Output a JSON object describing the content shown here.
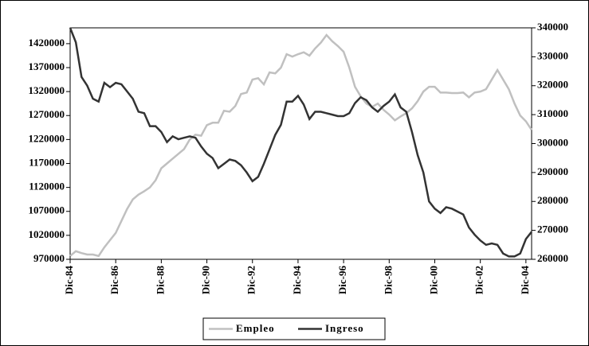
{
  "chart_data": {
    "type": "line",
    "categories": [
      "Dic-84",
      null,
      null,
      null,
      null,
      null,
      null,
      null,
      "Dic-86",
      null,
      null,
      null,
      null,
      null,
      null,
      null,
      "Dic-88",
      null,
      null,
      null,
      null,
      null,
      null,
      null,
      "Dic-90",
      null,
      null,
      null,
      null,
      null,
      null,
      null,
      "Dic-92",
      null,
      null,
      null,
      null,
      null,
      null,
      null,
      "Dic-94",
      null,
      null,
      null,
      null,
      null,
      null,
      null,
      "Dic-96",
      null,
      null,
      null,
      null,
      null,
      null,
      null,
      "Dic-98",
      null,
      null,
      null,
      null,
      null,
      null,
      null,
      "Dic-00",
      null,
      null,
      null,
      null,
      null,
      null,
      null,
      "Dic-02",
      null,
      null,
      null,
      null,
      null,
      null,
      null,
      "Dic-04",
      null
    ],
    "series": [
      {
        "name": "Empleo",
        "color": "#c0c0c0",
        "values": [
          977000,
          987000,
          983000,
          980000,
          980000,
          977000,
          995000,
          1010000,
          1025000,
          1050000,
          1075000,
          1095000,
          1105000,
          1112000,
          1120000,
          1135000,
          1160000,
          1170000,
          1180000,
          1190000,
          1200000,
          1220000,
          1230000,
          1228000,
          1250000,
          1255000,
          1255000,
          1280000,
          1278000,
          1290000,
          1315000,
          1318000,
          1345000,
          1348000,
          1335000,
          1360000,
          1358000,
          1370000,
          1398000,
          1393000,
          1398000,
          1402000,
          1395000,
          1410000,
          1422000,
          1438000,
          1425000,
          1415000,
          1403000,
          1370000,
          1330000,
          1310000,
          1295000,
          1288000,
          1295000,
          1282000,
          1272000,
          1260000,
          1268000,
          1275000,
          1285000,
          1300000,
          1320000,
          1330000,
          1330000,
          1318000,
          1318000,
          1317000,
          1317000,
          1318000,
          1308000,
          1318000,
          1320000,
          1325000,
          1345000,
          1365000,
          1345000,
          1325000,
          1295000,
          1270000,
          1258000,
          1240000
        ]
      },
      {
        "name": "Ingreso",
        "color": "#333333",
        "axis": "y2",
        "values": [
          340000,
          335000,
          323000,
          320000,
          315500,
          314500,
          321000,
          319500,
          321000,
          320500,
          318000,
          315500,
          311000,
          310500,
          306000,
          306000,
          304000,
          300500,
          302500,
          301500,
          302000,
          302500,
          302000,
          299000,
          296500,
          295000,
          291500,
          293000,
          294500,
          294000,
          292500,
          290000,
          287000,
          288500,
          293000,
          298000,
          303000,
          306500,
          314500,
          314500,
          316500,
          313500,
          308500,
          311000,
          311000,
          310500,
          310000,
          309500,
          309500,
          310500,
          314000,
          316000,
          315000,
          312500,
          311000,
          313000,
          314500,
          317000,
          312500,
          311000,
          304000,
          296000,
          290000,
          280000,
          277500,
          276000,
          278000,
          277500,
          276500,
          275500,
          271000,
          268500,
          266500,
          265000,
          265500,
          265000,
          262000,
          261000,
          261000,
          262000,
          267000,
          269500
        ]
      }
    ],
    "ylim": [
      970000,
      1453000
    ],
    "yticks": [
      970000,
      1020000,
      1070000,
      1120000,
      1170000,
      1220000,
      1270000,
      1320000,
      1370000,
      1420000
    ],
    "y2lim": [
      260000,
      340000
    ],
    "y2ticks": [
      260000,
      270000,
      280000,
      290000,
      300000,
      310000,
      320000,
      330000,
      340000
    ],
    "grid": false,
    "legend": "bottom"
  }
}
